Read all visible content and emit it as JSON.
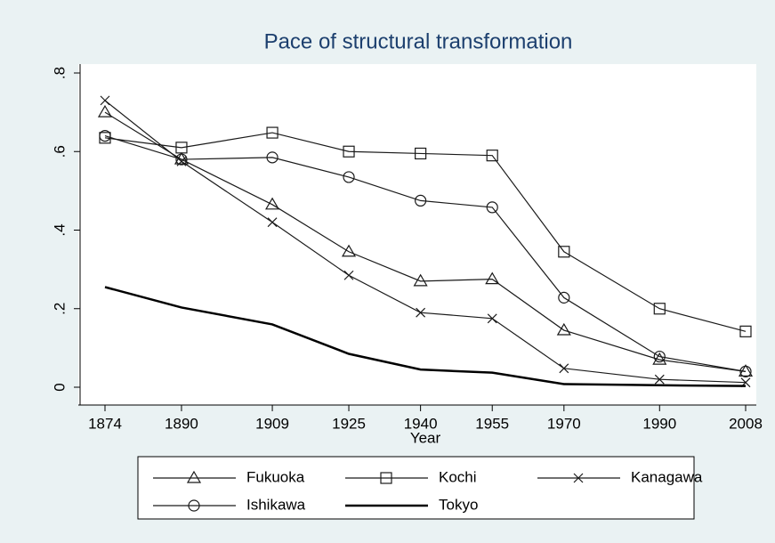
{
  "chart_data": {
    "type": "line",
    "title": "Pace of structural transformation",
    "x_label": "Year",
    "x": [
      1874,
      1890,
      1909,
      1925,
      1940,
      1955,
      1970,
      1990,
      2008
    ],
    "xlim": [
      1874,
      2008
    ],
    "xticks": [
      1874,
      1890,
      1909,
      1925,
      1940,
      1955,
      1970,
      1990,
      2008
    ],
    "ylim": [
      0,
      0.8
    ],
    "yticks": [
      0,
      {
        "value": 0.2,
        "label": ".2"
      },
      {
        "value": 0.4,
        "label": ".4"
      },
      {
        "value": 0.6,
        "label": ".6"
      },
      {
        "value": 0.8,
        "label": ".8"
      }
    ],
    "series": [
      {
        "name": "Fukuoka",
        "color": "#1a1a1a",
        "marker": "triangle",
        "values": [
          0.7,
          0.58,
          0.465,
          0.345,
          0.27,
          0.275,
          0.145,
          0.07,
          0.04
        ]
      },
      {
        "name": "Kochi",
        "color": "#1a1a1a",
        "marker": "square",
        "values": [
          0.635,
          0.61,
          0.648,
          0.6,
          0.595,
          0.59,
          0.345,
          0.2,
          0.142
        ]
      },
      {
        "name": "Kanagawa",
        "color": "#1a1a1a",
        "marker": "x",
        "values": [
          0.73,
          0.575,
          0.42,
          0.285,
          0.19,
          0.175,
          0.048,
          0.02,
          0.012
        ]
      },
      {
        "name": "Ishikawa",
        "color": "#1a1a1a",
        "marker": "circle",
        "values": [
          0.64,
          0.58,
          0.585,
          0.535,
          0.475,
          0.458,
          0.228,
          0.078,
          0.04
        ]
      },
      {
        "name": "Tokyo",
        "color": "#000000",
        "marker": "none",
        "width": 2.5,
        "values": [
          0.255,
          0.203,
          0.16,
          0.085,
          0.045,
          0.037,
          0.008,
          0.005,
          0.003
        ]
      }
    ]
  }
}
